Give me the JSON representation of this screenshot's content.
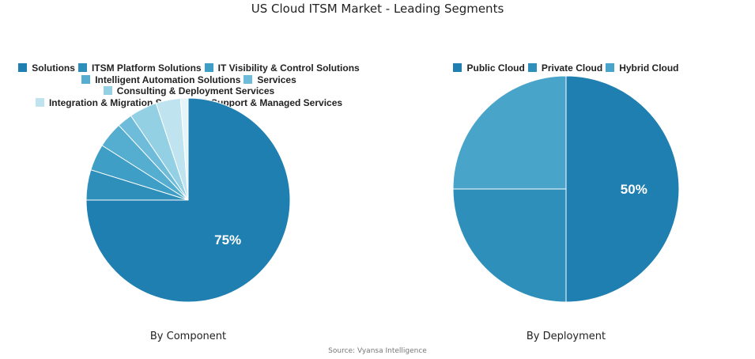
{
  "title": "US Cloud ITSM Market - Leading Segments",
  "source": "Source: Vyansa Intelligence",
  "chart_data": [
    {
      "type": "pie",
      "subtitle": "By Component",
      "legend_position": "top",
      "categories": [
        "Solutions",
        "ITSM Platform Solutions",
        "IT Visibility & Control Solutions",
        "Intelligent Automation Solutions",
        "Services",
        "Consulting & Deployment Services",
        "Integration & Migration Services",
        "Support & Managed Services"
      ],
      "values": [
        75,
        4.8,
        4.2,
        4.1,
        2.4,
        4.4,
        3.9,
        1.2
      ],
      "colors": [
        "#1f7fb0",
        "#2e8fba",
        "#3f9ec6",
        "#55adcf",
        "#6ebcd9",
        "#93d0e3",
        "#bfe4ef",
        "#e6f5f9"
      ],
      "data_labels": [
        "75%",
        "",
        "",
        "",
        "",
        "",
        "",
        ""
      ]
    },
    {
      "type": "pie",
      "subtitle": "By Deployment",
      "legend_position": "top",
      "categories": [
        "Public Cloud",
        "Private Cloud",
        "Hybrid Cloud"
      ],
      "values": [
        50,
        25,
        25
      ],
      "colors": [
        "#1f7fb0",
        "#2e8fba",
        "#48a4c9"
      ],
      "data_labels": [
        "50%",
        "",
        ""
      ]
    }
  ]
}
